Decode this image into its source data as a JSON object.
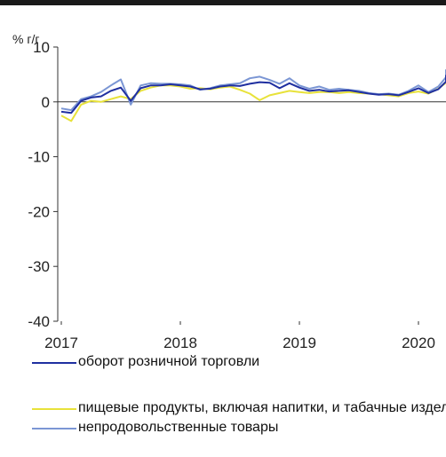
{
  "chart_data": {
    "type": "line",
    "ylabel": "% г/г",
    "ylim": [
      -40,
      10
    ],
    "yticks": [
      10,
      0,
      -10,
      -20,
      -30,
      -40
    ],
    "xticks": [
      "2017",
      "2018",
      "2019",
      "2020"
    ],
    "x_start": 2017.0,
    "x_step_months": 1,
    "legend_position": "bottom",
    "series": [
      {
        "name": "оборот розничной торговли",
        "color": "#1f2fa0",
        "values": [
          -1.8,
          -2.0,
          0.2,
          0.8,
          1.0,
          2.0,
          2.6,
          0.2,
          2.5,
          3.0,
          3.0,
          3.2,
          3.0,
          2.8,
          2.3,
          2.4,
          2.8,
          3.0,
          2.9,
          3.3,
          3.6,
          3.5,
          2.5,
          3.4,
          2.6,
          2.0,
          2.2,
          1.9,
          2.0,
          2.1,
          1.8,
          1.5,
          1.3,
          1.4,
          1.2,
          1.8,
          2.5,
          1.6,
          2.3,
          3.7,
          4.6,
          4.9
        ]
      },
      {
        "name": "пищевые продукты, включая напитки, и табачные изделия",
        "color": "#e8e23a",
        "values": [
          -2.5,
          -3.5,
          -0.5,
          0.2,
          0.0,
          0.5,
          1.0,
          0.5,
          2.0,
          2.6,
          3.0,
          3.0,
          2.8,
          2.4,
          2.5,
          2.3,
          2.6,
          2.8,
          2.2,
          1.5,
          0.3,
          1.2,
          1.6,
          2.0,
          1.8,
          1.6,
          1.8,
          1.8,
          1.6,
          1.8,
          1.6,
          1.5,
          1.4,
          1.2,
          1.0,
          1.6,
          1.9,
          1.5,
          2.4,
          3.5,
          4.0,
          4.3
        ]
      },
      {
        "name": "непродовольственные товары",
        "color": "#7b96d4",
        "values": [
          -1.2,
          -1.5,
          0.5,
          1.0,
          1.8,
          3.0,
          4.1,
          -0.5,
          3.0,
          3.4,
          3.3,
          3.3,
          3.2,
          3.0,
          2.2,
          2.5,
          3.0,
          3.2,
          3.4,
          4.3,
          4.6,
          4.0,
          3.3,
          4.3,
          3.0,
          2.4,
          2.8,
          2.2,
          2.4,
          2.2,
          2.0,
          1.6,
          1.4,
          1.5,
          1.3,
          2.0,
          3.0,
          1.8,
          2.8,
          4.5,
          5.4,
          5.9
        ]
      }
    ]
  }
}
